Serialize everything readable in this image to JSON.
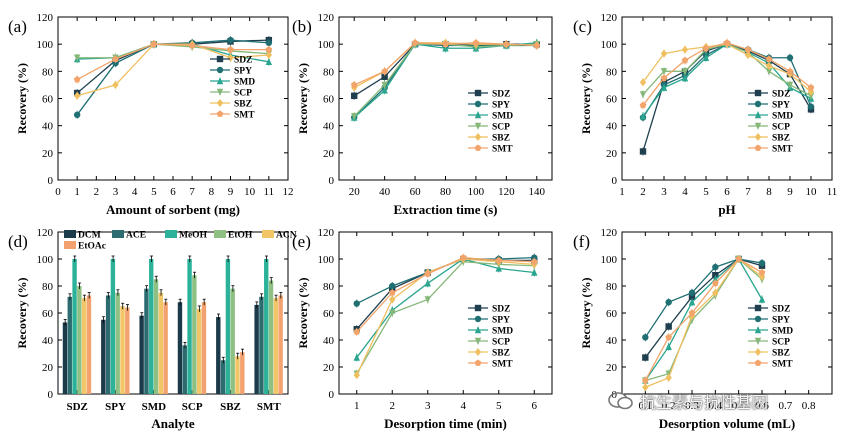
{
  "colors": {
    "SDZ": "#1f3f4f",
    "SPY": "#1f6f73",
    "SMD": "#2aa590",
    "SCP": "#86b87a",
    "SBZ": "#f0c060",
    "SMT": "#f2a46b",
    "DCM": "#1c3b4a",
    "ACE": "#2c6c70",
    "MeOH": "#2db29a",
    "EtOH": "#8ebf83",
    "ACN": "#f2c666",
    "EtOAc": "#f3a26f"
  },
  "watermark": "抗生素与抗性基因",
  "chart_data": [
    {
      "id": "a",
      "panel_label": "(a)",
      "type": "line",
      "xlabel": "Amount of sorbent (mg)",
      "ylabel": "Recovery (%)",
      "xlim": [
        0,
        12
      ],
      "ylim": [
        0,
        120
      ],
      "xticks": [
        0,
        1,
        2,
        3,
        4,
        5,
        6,
        7,
        8,
        9,
        10,
        11,
        12
      ],
      "yticks": [
        0,
        20,
        40,
        60,
        80,
        100,
        120
      ],
      "legend_position": "right",
      "series": [
        {
          "name": "SDZ",
          "x": [
            1,
            3,
            5,
            7,
            9,
            11
          ],
          "y": [
            64,
            88,
            100,
            100,
            102,
            103
          ]
        },
        {
          "name": "SPY",
          "x": [
            1,
            3,
            5,
            7,
            9,
            11
          ],
          "y": [
            48,
            86,
            100,
            101,
            103,
            101
          ]
        },
        {
          "name": "SMD",
          "x": [
            1,
            3,
            5,
            7,
            9,
            11
          ],
          "y": [
            89,
            90,
            100,
            100,
            92,
            87
          ]
        },
        {
          "name": "SCP",
          "x": [
            1,
            3,
            5,
            7,
            9,
            11
          ],
          "y": [
            90,
            90,
            100,
            98,
            95,
            93
          ]
        },
        {
          "name": "SBZ",
          "x": [
            1,
            3,
            5,
            7,
            9,
            11
          ],
          "y": [
            62,
            70,
            100,
            100,
            90,
            92
          ]
        },
        {
          "name": "SMT",
          "x": [
            1,
            3,
            5,
            7,
            9,
            11
          ],
          "y": [
            74,
            89,
            100,
            99,
            96,
            96
          ]
        }
      ]
    },
    {
      "id": "b",
      "panel_label": "(b)",
      "type": "line",
      "xlabel": "Extraction time (s)",
      "ylabel": "Recovery (%)",
      "xlim": [
        10,
        150
      ],
      "ylim": [
        0,
        120
      ],
      "xticks": [
        20,
        40,
        60,
        80,
        100,
        120,
        140
      ],
      "yticks": [
        0,
        20,
        40,
        60,
        80,
        100,
        120
      ],
      "legend_position": "bottom-right",
      "series": [
        {
          "name": "SDZ",
          "x": [
            20,
            40,
            60,
            80,
            100,
            120,
            140
          ],
          "y": [
            62,
            76,
            100,
            100,
            99,
            100,
            100
          ]
        },
        {
          "name": "SPY",
          "x": [
            20,
            40,
            60,
            80,
            100,
            120,
            140
          ],
          "y": [
            46,
            68,
            100,
            99,
            99,
            99,
            99
          ]
        },
        {
          "name": "SMD",
          "x": [
            20,
            40,
            60,
            80,
            100,
            120,
            140
          ],
          "y": [
            46,
            66,
            100,
            97,
            97,
            99,
            101
          ]
        },
        {
          "name": "SCP",
          "x": [
            20,
            40,
            60,
            80,
            100,
            120,
            140
          ],
          "y": [
            47,
            70,
            100,
            100,
            98,
            99,
            100
          ]
        },
        {
          "name": "SBZ",
          "x": [
            20,
            40,
            60,
            80,
            100,
            120,
            140
          ],
          "y": [
            68,
            80,
            101,
            101,
            100,
            100,
            99
          ]
        },
        {
          "name": "SMT",
          "x": [
            20,
            40,
            60,
            80,
            100,
            120,
            140
          ],
          "y": [
            70,
            80,
            101,
            100,
            101,
            100,
            99
          ]
        }
      ]
    },
    {
      "id": "c",
      "panel_label": "(c)",
      "type": "line",
      "xlabel": "pH",
      "ylabel": "Recovery (%)",
      "xlim": [
        1,
        11
      ],
      "ylim": [
        0,
        120
      ],
      "xticks": [
        1,
        2,
        3,
        4,
        5,
        6,
        7,
        8,
        9,
        10,
        11
      ],
      "yticks": [
        0,
        20,
        40,
        60,
        80,
        100,
        120
      ],
      "legend_position": "bottom-right",
      "series": [
        {
          "name": "SDZ",
          "x": [
            2,
            3,
            4,
            5,
            6,
            7,
            8,
            9,
            10
          ],
          "y": [
            21,
            72,
            80,
            95,
            100,
            95,
            88,
            78,
            52
          ]
        },
        {
          "name": "SPY",
          "x": [
            2,
            3,
            4,
            5,
            6,
            7,
            8,
            9,
            10
          ],
          "y": [
            46,
            70,
            77,
            92,
            100,
            96,
            90,
            90,
            54
          ]
        },
        {
          "name": "SMD",
          "x": [
            2,
            3,
            4,
            5,
            6,
            7,
            8,
            9,
            10
          ],
          "y": [
            47,
            68,
            75,
            90,
            100,
            94,
            86,
            68,
            60
          ]
        },
        {
          "name": "SCP",
          "x": [
            2,
            3,
            4,
            5,
            6,
            7,
            8,
            9,
            10
          ],
          "y": [
            63,
            80,
            80,
            96,
            100,
            94,
            80,
            70,
            62
          ]
        },
        {
          "name": "SBZ",
          "x": [
            2,
            3,
            4,
            5,
            6,
            7,
            8,
            9,
            10
          ],
          "y": [
            72,
            93,
            96,
            98,
            100,
            92,
            84,
            78,
            65
          ]
        },
        {
          "name": "SMT",
          "x": [
            2,
            3,
            4,
            5,
            6,
            7,
            8,
            9,
            10
          ],
          "y": [
            55,
            75,
            88,
            97,
            101,
            96,
            89,
            80,
            68
          ]
        }
      ]
    },
    {
      "id": "d",
      "panel_label": "(d)",
      "type": "bar",
      "xlabel": "Analyte",
      "ylabel": "Recovery (%)",
      "ylim": [
        0,
        120
      ],
      "yticks": [
        0,
        20,
        40,
        60,
        80,
        100,
        120
      ],
      "legend_position": "top",
      "categories": [
        "SDZ",
        "SPY",
        "SMD",
        "SCP",
        "SBZ",
        "SMT"
      ],
      "series": [
        {
          "name": "DCM",
          "values": [
            53,
            55,
            58,
            68,
            57,
            66
          ]
        },
        {
          "name": "ACE",
          "values": [
            72,
            73,
            78,
            36,
            25,
            72
          ]
        },
        {
          "name": "MeOH",
          "values": [
            100,
            100,
            100,
            100,
            100,
            100
          ]
        },
        {
          "name": "EtOH",
          "values": [
            80,
            75,
            85,
            88,
            78,
            84
          ]
        },
        {
          "name": "ACN",
          "values": [
            71,
            65,
            75,
            63,
            28,
            71
          ]
        },
        {
          "name": "EtOAc",
          "values": [
            73,
            64,
            68,
            68,
            31,
            73
          ]
        }
      ]
    },
    {
      "id": "e",
      "panel_label": "(e)",
      "type": "line",
      "xlabel": "Desorption time (min)",
      "ylabel": "Recovery (%)",
      "xlim": [
        0.5,
        6.5
      ],
      "ylim": [
        0,
        120
      ],
      "xticks": [
        1,
        2,
        3,
        4,
        5,
        6
      ],
      "yticks": [
        0,
        20,
        40,
        60,
        80,
        100,
        120
      ],
      "legend_position": "bottom-right",
      "series": [
        {
          "name": "SDZ",
          "x": [
            1,
            2,
            3,
            4,
            5,
            6
          ],
          "y": [
            48,
            78,
            90,
            100,
            99,
            99
          ]
        },
        {
          "name": "SPY",
          "x": [
            1,
            2,
            3,
            4,
            5,
            6
          ],
          "y": [
            67,
            80,
            90,
            100,
            100,
            101
          ]
        },
        {
          "name": "SMD",
          "x": [
            1,
            2,
            3,
            4,
            5,
            6
          ],
          "y": [
            27,
            62,
            82,
            100,
            93,
            90
          ]
        },
        {
          "name": "SCP",
          "x": [
            1,
            2,
            3,
            4,
            5,
            6
          ],
          "y": [
            15,
            60,
            70,
            98,
            96,
            95
          ]
        },
        {
          "name": "SBZ",
          "x": [
            1,
            2,
            3,
            4,
            5,
            6
          ],
          "y": [
            14,
            70,
            90,
            100,
            98,
            96
          ]
        },
        {
          "name": "SMT",
          "x": [
            1,
            2,
            3,
            4,
            5,
            6
          ],
          "y": [
            46,
            75,
            89,
            101,
            99,
            98
          ]
        }
      ]
    },
    {
      "id": "f",
      "panel_label": "(f)",
      "type": "line",
      "xlabel": "Desorption volume (mL)",
      "ylabel": "Recovery (%)",
      "xlim": [
        0,
        0.9
      ],
      "ylim": [
        0,
        120
      ],
      "xticks": [
        0.1,
        0.2,
        0.3,
        0.4,
        0.5,
        0.6,
        0.7,
        0.8
      ],
      "yticks": [
        0,
        20,
        40,
        60,
        80,
        100,
        120
      ],
      "legend_position": "bottom-right",
      "series": [
        {
          "name": "SDZ",
          "x": [
            0.1,
            0.2,
            0.3,
            0.4,
            0.5,
            0.6
          ],
          "y": [
            27,
            50,
            72,
            88,
            100,
            95
          ]
        },
        {
          "name": "SPY",
          "x": [
            0.1,
            0.2,
            0.3,
            0.4,
            0.5,
            0.6
          ],
          "y": [
            42,
            68,
            75,
            94,
            100,
            97
          ]
        },
        {
          "name": "SMD",
          "x": [
            0.1,
            0.2,
            0.3,
            0.4,
            0.5,
            0.6
          ],
          "y": [
            10,
            35,
            68,
            85,
            100,
            70
          ]
        },
        {
          "name": "SCP",
          "x": [
            0.1,
            0.2,
            0.3,
            0.4,
            0.5,
            0.6
          ],
          "y": [
            10,
            15,
            55,
            73,
            100,
            85
          ]
        },
        {
          "name": "SBZ",
          "x": [
            0.1,
            0.2,
            0.3,
            0.4,
            0.5,
            0.6
          ],
          "y": [
            5,
            12,
            58,
            75,
            100,
            87
          ]
        },
        {
          "name": "SMT",
          "x": [
            0.1,
            0.2,
            0.3,
            0.4,
            0.5,
            0.6
          ],
          "y": [
            10,
            42,
            60,
            82,
            100,
            90
          ]
        }
      ]
    }
  ]
}
